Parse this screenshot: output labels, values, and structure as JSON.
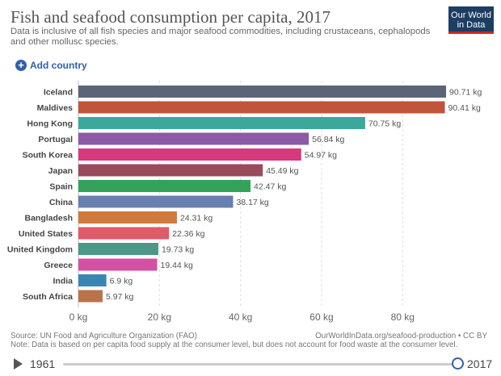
{
  "header": {
    "title": "Fish and seafood consumption per capita, 2017",
    "subtitle": "Data is inclusive of all fish species and major seafood commodities, including crustaceans, cephalopods and other mollusc species.",
    "logo_text": "Our World in Data"
  },
  "controls": {
    "add_country_label": "Add country",
    "plus_icon": "+"
  },
  "chart_data": {
    "type": "bar",
    "orientation": "horizontal",
    "title": "Fish and seafood consumption per capita, 2017",
    "categories": [
      "Iceland",
      "Maldives",
      "Hong Kong",
      "Portugal",
      "South Korea",
      "Japan",
      "Spain",
      "China",
      "Bangladesh",
      "United States",
      "United Kingdom",
      "Greece",
      "India",
      "South Africa"
    ],
    "values": [
      90.71,
      90.41,
      70.75,
      56.84,
      54.97,
      45.49,
      42.47,
      38.17,
      24.31,
      22.36,
      19.73,
      19.44,
      6.9,
      5.97
    ],
    "value_labels": [
      "90.71 kg",
      "90.41 kg",
      "70.75 kg",
      "56.84 kg",
      "54.97 kg",
      "45.49 kg",
      "42.47 kg",
      "38.17 kg",
      "24.31 kg",
      "22.36 kg",
      "19.73 kg",
      "19.44 kg",
      "6.9 kg",
      "5.97 kg"
    ],
    "colors": [
      "#5b6577",
      "#c1553b",
      "#3aa99c",
      "#8a5aa7",
      "#d63a7c",
      "#994a5c",
      "#33a25a",
      "#6780b0",
      "#cf7a3c",
      "#e05a6a",
      "#4a9886",
      "#d251a3",
      "#3a86b0",
      "#b8734a"
    ],
    "xticks": [
      0,
      20,
      40,
      60,
      80
    ],
    "xtick_labels": [
      "0 kg",
      "20 kg",
      "40 kg",
      "60 kg",
      "80 kg"
    ],
    "xlim": [
      0,
      92.5
    ],
    "grid": true,
    "xlabel": "",
    "ylabel": ""
  },
  "footer": {
    "source": "Source: UN Food and Agriculture Organization (FAO)",
    "url": "OurWorldInData.org/seafood-production • CC BY",
    "note": "Note: Data is based on per capita food supply at the consumer level, but does not account for food waste at the consumer level."
  },
  "timeline": {
    "start_year": "1961",
    "end_year": "2017"
  }
}
